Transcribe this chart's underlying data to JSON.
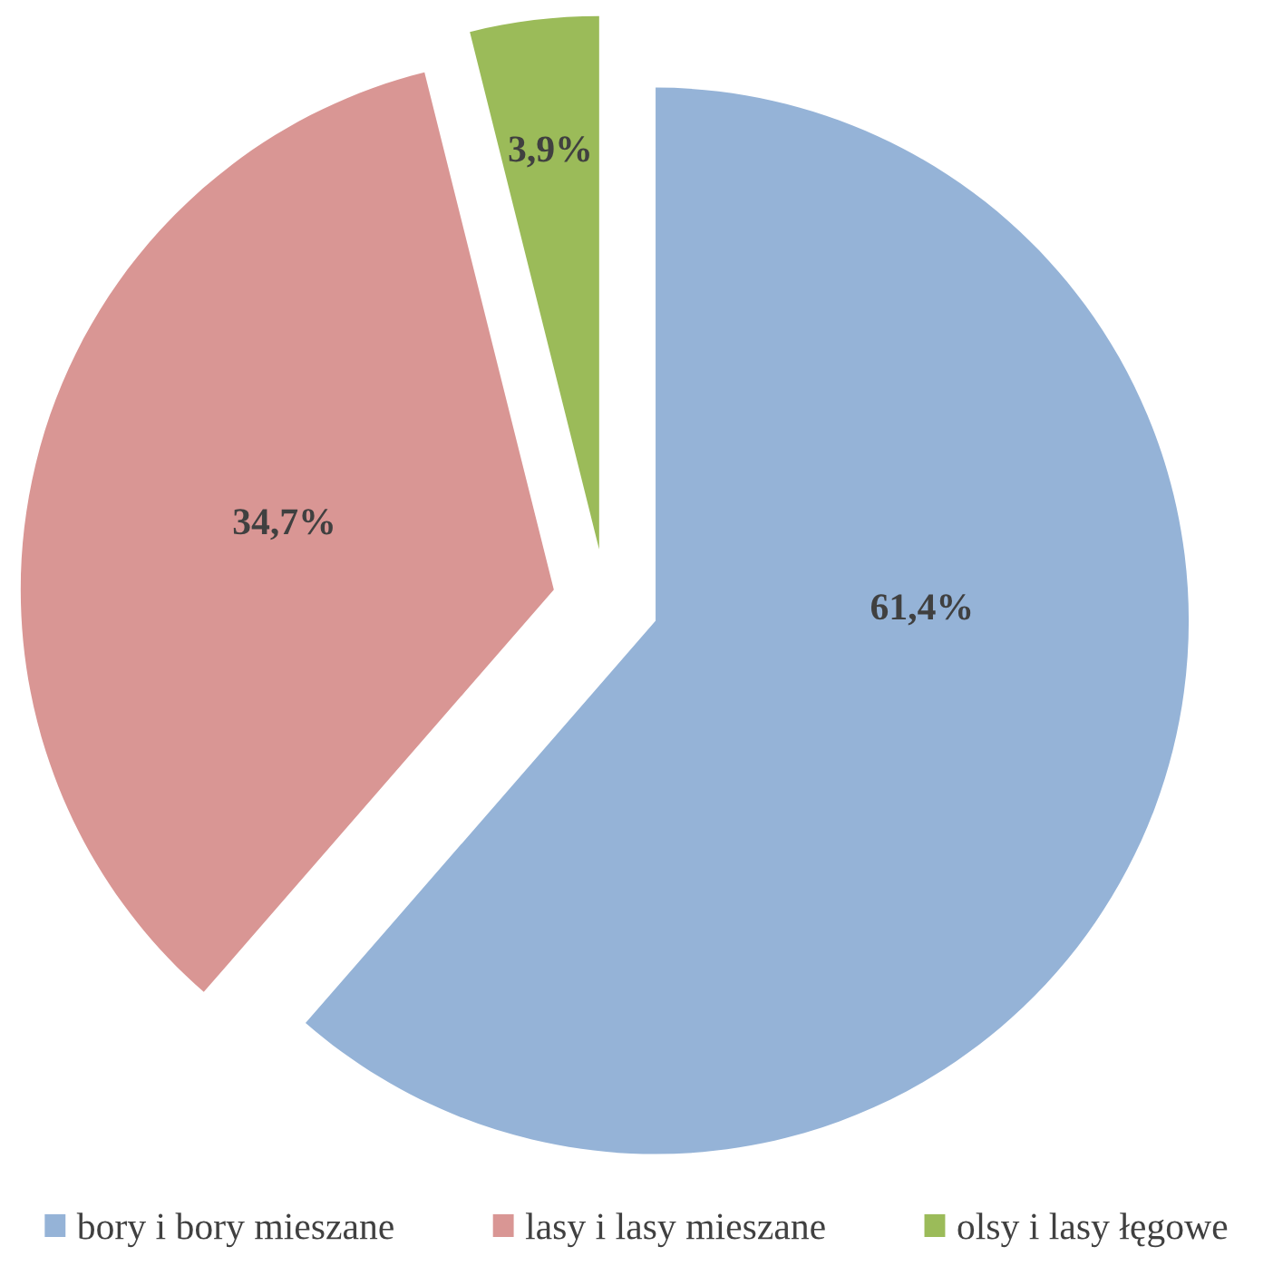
{
  "chart_data": {
    "type": "pie",
    "categories": [
      "bory i bory mieszane",
      "lasy i lasy mieszane",
      "olsy i lasy łęgowe"
    ],
    "values": [
      61.4,
      34.7,
      3.9
    ],
    "colors": [
      "#95b3d7",
      "#d99694",
      "#9bbb59"
    ],
    "value_labels": [
      "61,4%",
      "34,7%",
      "3,9%"
    ],
    "legend": "bottom"
  }
}
